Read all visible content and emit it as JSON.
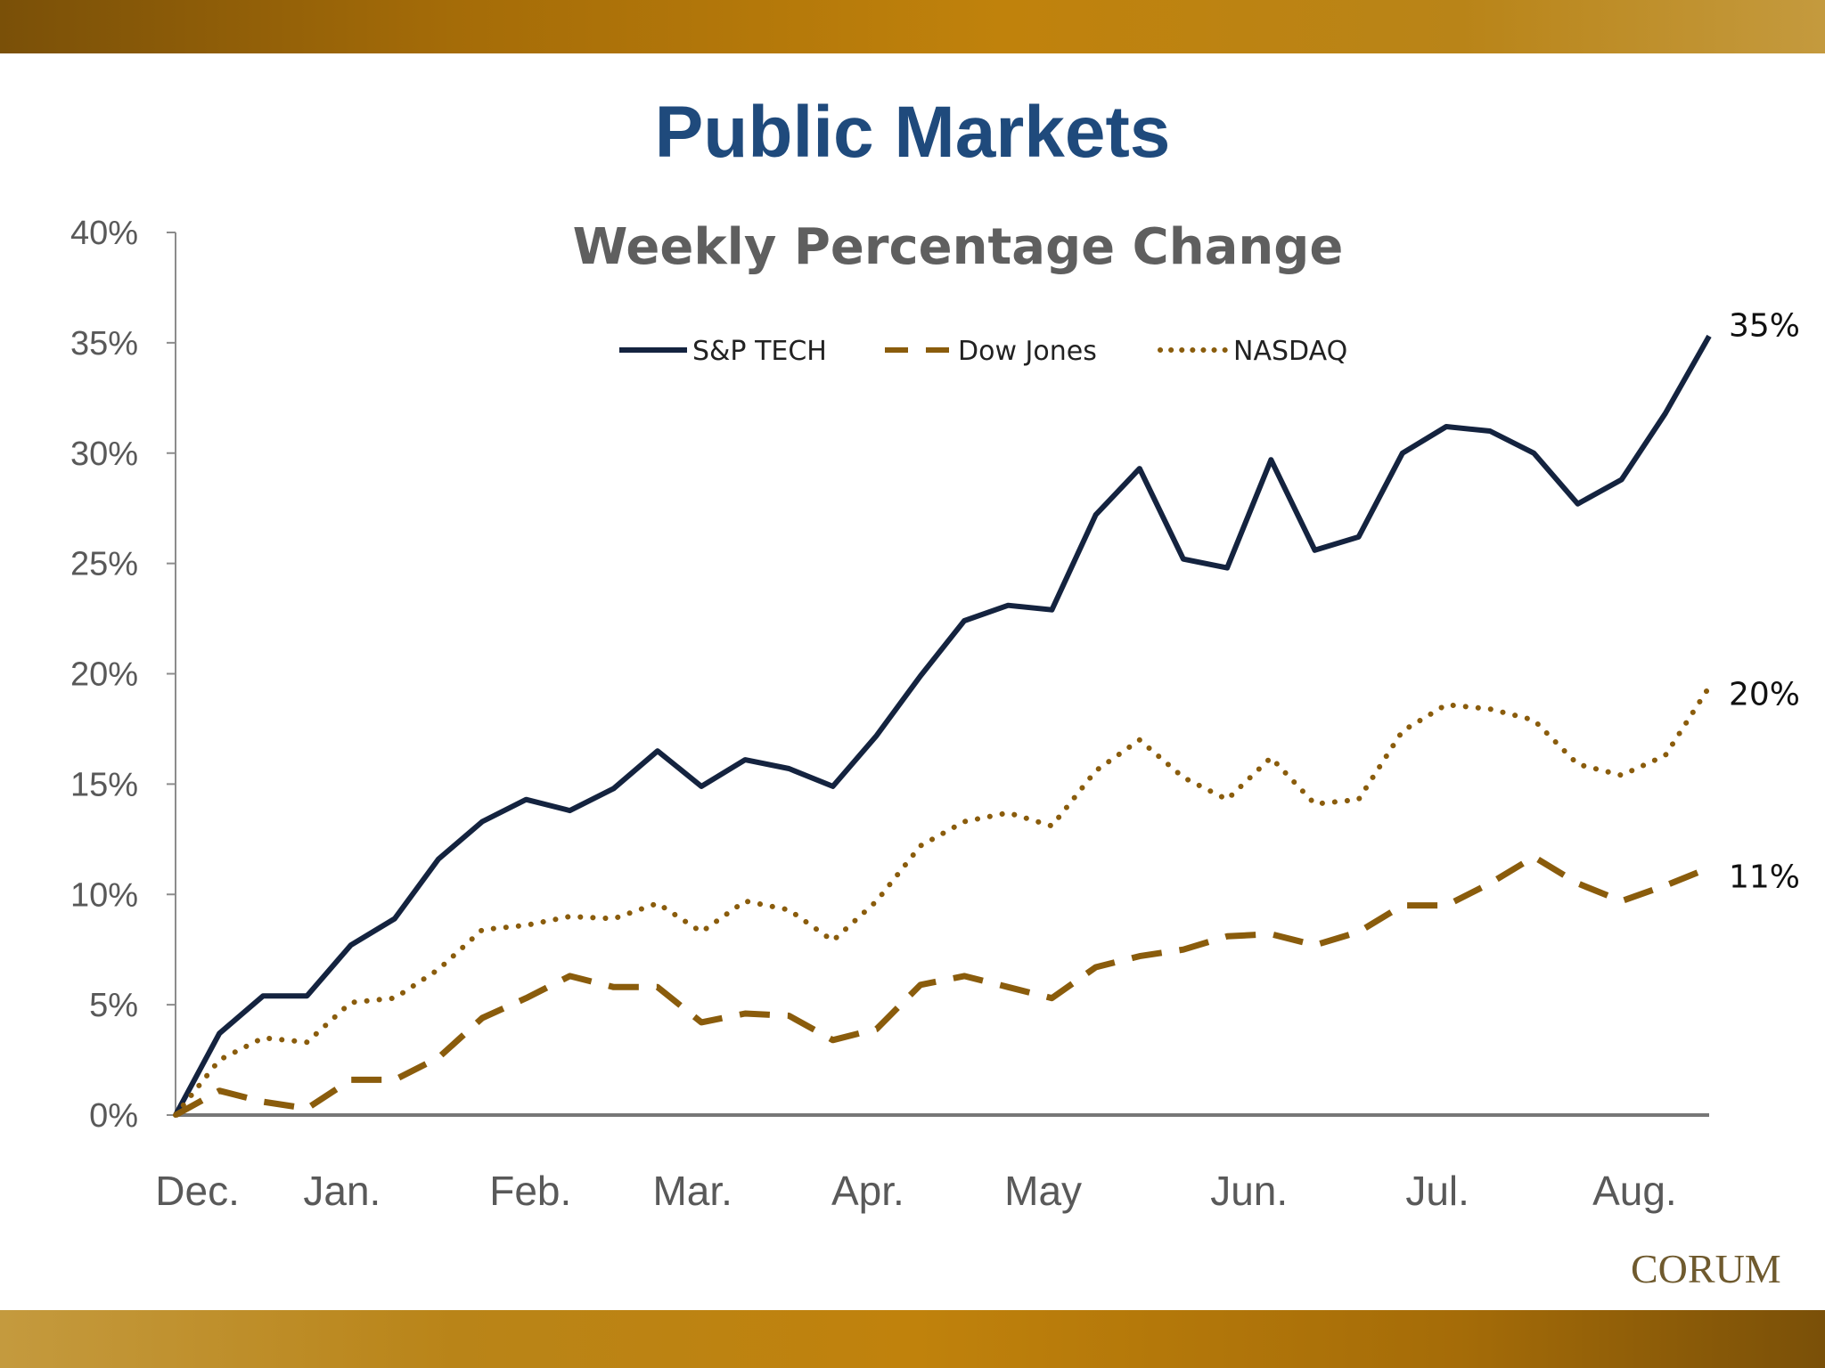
{
  "slide": {
    "title": "Public Markets",
    "logo": "CORUM",
    "colors": {
      "band": "#b07a10",
      "title": "#1f4a7c"
    }
  },
  "chart_data": {
    "type": "line",
    "title": "Weekly Percentage Change",
    "xlabel": "",
    "ylabel": "",
    "ylim": [
      0,
      0.4
    ],
    "yticks": [
      "0%",
      "5%",
      "10%",
      "15%",
      "20%",
      "25%",
      "30%",
      "35%",
      "40%"
    ],
    "month_labels": [
      {
        "label": "Dec.",
        "week": 0.5
      },
      {
        "label": "Jan.",
        "week": 3.8
      },
      {
        "label": "Feb.",
        "week": 8.1
      },
      {
        "label": "Mar.",
        "week": 11.8
      },
      {
        "label": "Apr.",
        "week": 15.8
      },
      {
        "label": "May",
        "week": 19.8
      },
      {
        "label": "Jun.",
        "week": 24.5
      },
      {
        "label": "Jul.",
        "week": 28.8
      },
      {
        "label": "Aug.",
        "week": 33.3
      }
    ],
    "grid": false,
    "legend_position": "top-center",
    "series": [
      {
        "name": "S&P TECH",
        "style": "solid",
        "color": "#14233f",
        "end_label": "35%",
        "values": [
          0.0,
          0.037,
          0.054,
          0.054,
          0.077,
          0.089,
          0.116,
          0.133,
          0.143,
          0.138,
          0.148,
          0.165,
          0.149,
          0.161,
          0.157,
          0.149,
          0.172,
          0.199,
          0.224,
          0.231,
          0.229,
          0.272,
          0.293,
          0.252,
          0.248,
          0.297,
          0.256,
          0.262,
          0.3,
          0.312,
          0.31,
          0.3,
          0.277,
          0.288,
          0.318,
          0.353
        ]
      },
      {
        "name": "Dow Jones",
        "style": "dashed",
        "color": "#8a5c0c",
        "end_label": "11%",
        "values": [
          0.0,
          0.011,
          0.006,
          0.003,
          0.016,
          0.016,
          0.026,
          0.044,
          0.053,
          0.063,
          0.058,
          0.058,
          0.042,
          0.046,
          0.045,
          0.034,
          0.039,
          0.059,
          0.063,
          0.058,
          0.053,
          0.067,
          0.072,
          0.075,
          0.081,
          0.082,
          0.077,
          0.083,
          0.095,
          0.095,
          0.105,
          0.117,
          0.105,
          0.097,
          0.104,
          0.112
        ]
      },
      {
        "name": "NASDAQ",
        "style": "dotted",
        "color": "#8a5c0c",
        "end_label": "20%",
        "values": [
          0.0,
          0.025,
          0.035,
          0.033,
          0.051,
          0.053,
          0.066,
          0.084,
          0.086,
          0.09,
          0.089,
          0.096,
          0.083,
          0.097,
          0.093,
          0.079,
          0.097,
          0.122,
          0.133,
          0.137,
          0.131,
          0.156,
          0.17,
          0.153,
          0.143,
          0.162,
          0.141,
          0.143,
          0.174,
          0.186,
          0.184,
          0.179,
          0.159,
          0.154,
          0.163,
          0.194
        ]
      }
    ]
  }
}
